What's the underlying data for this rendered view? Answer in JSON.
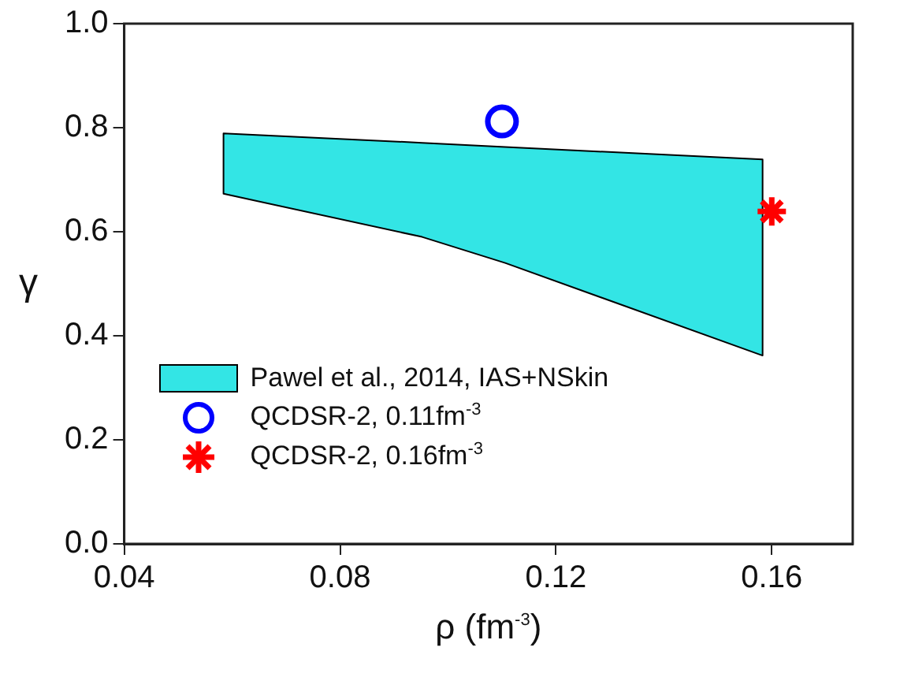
{
  "chart_data": {
    "type": "scatter",
    "xlabel": "ρ (fm$^{-3}$)",
    "ylabel": "γ",
    "xlim": [
      0.04,
      0.175
    ],
    "xticks": [
      0.04,
      0.08,
      0.12,
      0.16
    ],
    "ylim": [
      0,
      1
    ],
    "yticks": [
      {
        "value": 0,
        "label": "0.0"
      },
      0.2,
      0.4,
      0.6,
      0.8,
      {
        "value": 1,
        "label": "1.0"
      }
    ],
    "grid": false,
    "legend": "bottom left",
    "series": [
      {
        "type": "area",
        "name": "Pawel et al., 2014, IAS+NSkin",
        "color": "#33e5e5",
        "x": [
          0.0584,
          0.0952,
          0.1106,
          0.1583
        ],
        "values": [
          null,
          null,
          null,
          null
        ],
        "lower": [
          0.673,
          0.59,
          0.54,
          0.362
        ],
        "upper": [
          0.789,
          0.771,
          0.763,
          0.739
        ]
      },
      {
        "type": "scatter",
        "name": "QCDSR-2, 0.11fm$^{-3}$",
        "color": "#0000ff",
        "marker": "circle",
        "x": [
          0.11
        ],
        "values": [
          0.812
        ]
      },
      {
        "type": "scatter",
        "name": "QCDSR-2, 0.16fm$^{-3}$",
        "color": "#ff0000",
        "marker": "cross",
        "x": [
          0.16
        ],
        "values": [
          0.639
        ]
      }
    ]
  }
}
